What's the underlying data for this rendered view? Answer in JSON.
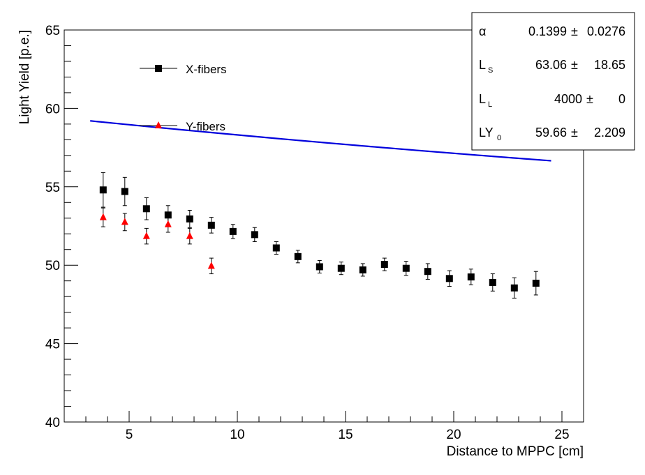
{
  "chart_data": {
    "type": "scatter",
    "xlabel": "Distance to MPPC [cm]",
    "ylabel": "Light Yield [p.e.]",
    "xlim": [
      2,
      26
    ],
    "ylim": [
      40,
      65
    ],
    "x_ticks": [
      5,
      10,
      15,
      20,
      25
    ],
    "y_ticks": [
      40,
      45,
      50,
      55,
      60,
      65
    ],
    "x_tick_labels": [
      "5",
      "10",
      "15",
      "20",
      "25"
    ],
    "y_tick_labels": [
      "40",
      "45",
      "50",
      "55",
      "60",
      "65"
    ],
    "legend_position": "upper-left",
    "series": [
      {
        "name": "X-fibers",
        "marker": "square",
        "color": "#000000",
        "points": [
          {
            "x": 3.8,
            "y": 54.8,
            "err": 1.1
          },
          {
            "x": 4.8,
            "y": 54.7,
            "err": 0.9
          },
          {
            "x": 5.8,
            "y": 53.6,
            "err": 0.7
          },
          {
            "x": 6.8,
            "y": 53.2,
            "err": 0.6
          },
          {
            "x": 7.8,
            "y": 52.95,
            "err": 0.55
          },
          {
            "x": 8.8,
            "y": 52.55,
            "err": 0.5
          },
          {
            "x": 9.8,
            "y": 52.15,
            "err": 0.45
          },
          {
            "x": 10.8,
            "y": 51.95,
            "err": 0.45
          },
          {
            "x": 11.8,
            "y": 51.1,
            "err": 0.4
          },
          {
            "x": 12.8,
            "y": 50.55,
            "err": 0.4
          },
          {
            "x": 13.8,
            "y": 49.9,
            "err": 0.4
          },
          {
            "x": 14.8,
            "y": 49.8,
            "err": 0.4
          },
          {
            "x": 15.8,
            "y": 49.7,
            "err": 0.4
          },
          {
            "x": 16.8,
            "y": 50.05,
            "err": 0.4
          },
          {
            "x": 17.8,
            "y": 49.8,
            "err": 0.45
          },
          {
            "x": 18.8,
            "y": 49.6,
            "err": 0.5
          },
          {
            "x": 19.8,
            "y": 49.15,
            "err": 0.5
          },
          {
            "x": 20.8,
            "y": 49.25,
            "err": 0.5
          },
          {
            "x": 21.8,
            "y": 48.9,
            "err": 0.55
          },
          {
            "x": 22.8,
            "y": 48.55,
            "err": 0.65
          },
          {
            "x": 23.8,
            "y": 48.85,
            "err": 0.75
          }
        ]
      },
      {
        "name": "Y-fibers",
        "marker": "triangle",
        "color": "#ff0000",
        "points": [
          {
            "x": 3.8,
            "y": 53.05,
            "err": 0.6
          },
          {
            "x": 4.8,
            "y": 52.75,
            "err": 0.55
          },
          {
            "x": 5.8,
            "y": 51.85,
            "err": 0.5
          },
          {
            "x": 6.8,
            "y": 52.6,
            "err": 0.5
          },
          {
            "x": 7.8,
            "y": 51.85,
            "err": 0.5
          },
          {
            "x": 8.8,
            "y": 49.95,
            "err": 0.5
          }
        ]
      }
    ],
    "fit": {
      "color": "#0000dd",
      "x_range": [
        3.2,
        24.5
      ],
      "alpha": 0.1399,
      "L_S": 63.06,
      "L_L": 4000,
      "LY_0": 59.66
    },
    "stats_box": {
      "rows": [
        {
          "label": "α",
          "sub": "",
          "value": "0.1399",
          "pm": "±",
          "error": "0.0276"
        },
        {
          "label": "L",
          "sub": "S",
          "value": "63.06",
          "pm": "±",
          "error": "18.65"
        },
        {
          "label": "L",
          "sub": "L",
          "value": "4000",
          "pm": "±",
          "error": "0"
        },
        {
          "label": "LY",
          "sub": "0",
          "value": "59.66",
          "pm": "±",
          "error": "2.209"
        }
      ]
    }
  }
}
